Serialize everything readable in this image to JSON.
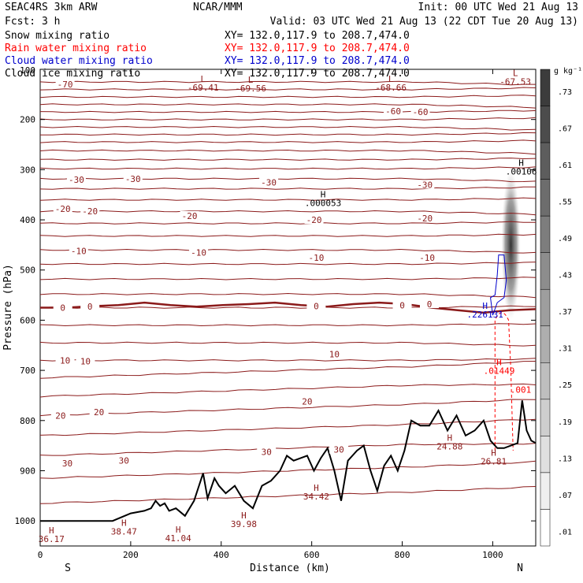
{
  "header": {
    "model": "SEAC4RS  3km ARW",
    "org": "NCAR/MMM",
    "init": "Init: 00 UTC Wed 21 Aug 13",
    "fcst": "Fcst:   3 h",
    "valid": "Valid: 03 UTC Wed 21 Aug 13 (22 CDT Tue 20 Aug 13)",
    "fields": [
      {
        "label": "Snow mixing ratio",
        "xy": "XY= 132.0,117.9 to 208.7,474.0",
        "color": "#000000"
      },
      {
        "label": "Rain water mixing ratio",
        "xy": "XY= 132.0,117.9 to 208.7,474.0",
        "color": "#ff0000"
      },
      {
        "label": "Cloud water mixing ratio",
        "xy": "XY= 132.0,117.9 to 208.7,474.0",
        "color": "#0000cc"
      },
      {
        "label": "Cloud ice mixing ratio",
        "xy": "XY= 132.0,117.9 to 208.7,474.0",
        "color": "#000000"
      }
    ]
  },
  "chart_data": {
    "type": "cross-section",
    "xlabel": "Distance (km)",
    "ylabel": "Pressure (hPa)",
    "xlim": [
      0,
      1095
    ],
    "ylim": [
      1050,
      100
    ],
    "x_ticks": [
      0,
      200,
      400,
      600,
      800,
      1000
    ],
    "y_ticks": [
      200,
      300,
      400,
      500,
      600,
      700,
      800,
      900,
      1000
    ],
    "y_tick_top": "100",
    "end_labels": {
      "left": "S",
      "right": "N"
    },
    "temperature_contour_color": "#8b1a1a",
    "temperature_contour_levels": [
      -70,
      -60,
      -50,
      -40,
      -30,
      -20,
      -10,
      0,
      10,
      20,
      30
    ],
    "contour_labels": [
      {
        "x": 55,
        "p": 130,
        "text": "-70"
      },
      {
        "x": 780,
        "p": 183,
        "text": "-60"
      },
      {
        "x": 840,
        "p": 185,
        "text": "-60"
      },
      {
        "x": 80,
        "p": 320,
        "text": "-30"
      },
      {
        "x": 205,
        "p": 318,
        "text": "-30"
      },
      {
        "x": 505,
        "p": 325,
        "text": "-30"
      },
      {
        "x": 850,
        "p": 330,
        "text": "-30"
      },
      {
        "x": 50,
        "p": 378,
        "text": "-20"
      },
      {
        "x": 110,
        "p": 383,
        "text": "-20"
      },
      {
        "x": 330,
        "p": 392,
        "text": "-20"
      },
      {
        "x": 605,
        "p": 400,
        "text": "-20"
      },
      {
        "x": 850,
        "p": 397,
        "text": "-20"
      },
      {
        "x": 85,
        "p": 462,
        "text": "-10"
      },
      {
        "x": 350,
        "p": 465,
        "text": "-10"
      },
      {
        "x": 610,
        "p": 475,
        "text": "-10"
      },
      {
        "x": 855,
        "p": 475,
        "text": "-10"
      },
      {
        "x": 50,
        "p": 575,
        "text": "0"
      },
      {
        "x": 110,
        "p": 573,
        "text": "0"
      },
      {
        "x": 610,
        "p": 572,
        "text": "0"
      },
      {
        "x": 800,
        "p": 570,
        "text": "0"
      },
      {
        "x": 860,
        "p": 568,
        "text": "0"
      },
      {
        "x": 55,
        "p": 680,
        "text": "10"
      },
      {
        "x": 100,
        "p": 682,
        "text": "10"
      },
      {
        "x": 650,
        "p": 668,
        "text": "10"
      },
      {
        "x": 590,
        "p": 762,
        "text": "20"
      },
      {
        "x": 45,
        "p": 790,
        "text": "20"
      },
      {
        "x": 130,
        "p": 783,
        "text": "20"
      },
      {
        "x": 500,
        "p": 862,
        "text": "30"
      },
      {
        "x": 660,
        "p": 858,
        "text": "30"
      },
      {
        "x": 60,
        "p": 885,
        "text": "30"
      },
      {
        "x": 185,
        "p": 880,
        "text": "30"
      }
    ],
    "extrema": [
      {
        "x": 360,
        "p": 125,
        "mark": "L",
        "value": "-69.41",
        "color": "#8b1a1a"
      },
      {
        "x": 465,
        "p": 127,
        "mark": "L",
        "value": "-69.56",
        "color": "#8b1a1a"
      },
      {
        "x": 775,
        "p": 125,
        "mark": "L",
        "value": "-68.66",
        "color": "#8b1a1a"
      },
      {
        "x": 1050,
        "p": 113,
        "mark": "L",
        "value": "-67.53",
        "color": "#8b1a1a"
      },
      {
        "x": 1063,
        "p": 292,
        "mark": "H",
        "value": ".00106",
        "color": "#000000"
      },
      {
        "x": 625,
        "p": 355,
        "mark": "H",
        "value": ".000053",
        "color": "#000000"
      },
      {
        "x": 983,
        "p": 577,
        "mark": "H",
        "value": ".226131",
        "color": "#0000cc"
      },
      {
        "x": 1014,
        "p": 690,
        "mark": "H",
        "value": ".01449",
        "color": "#ff0000"
      },
      {
        "x": 1062,
        "p": 727,
        "mark": "",
        "value": ".001",
        "color": "#ff0000"
      },
      {
        "x": 905,
        "p": 840,
        "mark": "H",
        "value": "24.88",
        "color": "#8b1a1a"
      },
      {
        "x": 1002,
        "p": 870,
        "mark": "H",
        "value": "26.81",
        "color": "#8b1a1a"
      },
      {
        "x": 610,
        "p": 940,
        "mark": "H",
        "value": "34.42",
        "color": "#8b1a1a"
      },
      {
        "x": 450,
        "p": 995,
        "mark": "H",
        "value": "39.98",
        "color": "#8b1a1a"
      },
      {
        "x": 185,
        "p": 1010,
        "mark": "H",
        "value": "38.47",
        "color": "#8b1a1a"
      },
      {
        "x": 305,
        "p": 1023,
        "mark": "H",
        "value": "41.04",
        "color": "#8b1a1a"
      },
      {
        "x": 25,
        "p": 1025,
        "mark": "H",
        "value": "36.17",
        "color": "#8b1a1a"
      }
    ],
    "terrain": {
      "color": "#000000",
      "x": [
        0,
        90,
        160,
        200,
        230,
        245,
        255,
        265,
        275,
        285,
        300,
        320,
        340,
        360,
        370,
        385,
        395,
        410,
        430,
        450,
        470,
        490,
        510,
        530,
        545,
        560,
        575,
        590,
        605,
        620,
        635,
        650,
        665,
        680,
        700,
        715,
        730,
        745,
        760,
        775,
        790,
        805,
        820,
        840,
        860,
        880,
        900,
        920,
        940,
        960,
        980,
        995,
        1010,
        1025,
        1040,
        1055,
        1065,
        1075,
        1085,
        1095
      ],
      "p": [
        1000,
        1000,
        1000,
        985,
        980,
        975,
        960,
        970,
        965,
        980,
        975,
        990,
        960,
        905,
        955,
        915,
        930,
        945,
        930,
        960,
        975,
        930,
        920,
        900,
        870,
        880,
        875,
        870,
        900,
        875,
        855,
        900,
        960,
        880,
        860,
        850,
        900,
        940,
        890,
        870,
        900,
        860,
        800,
        810,
        810,
        780,
        820,
        790,
        830,
        820,
        800,
        840,
        855,
        855,
        850,
        845,
        760,
        820,
        840,
        845
      ]
    },
    "freezing_line_p": [
      575,
      575,
      572,
      570,
      565,
      570,
      573,
      570,
      568,
      565,
      570,
      573,
      568,
      565,
      568,
      575,
      580,
      585,
      580,
      578
    ],
    "colorbar": {
      "unit": "g kg⁻¹",
      "ticks": [
        ".73",
        ".67",
        ".61",
        ".55",
        ".49",
        ".43",
        ".37",
        ".31",
        ".25",
        ".19",
        ".13",
        ".07",
        ".01"
      ]
    }
  }
}
